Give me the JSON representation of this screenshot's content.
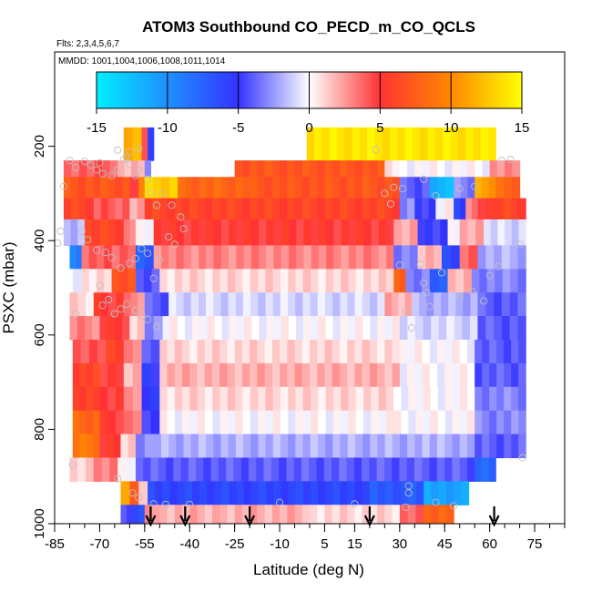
{
  "chart_data": {
    "type": "heatmap",
    "title": "ATOM3 Southbound CO_PECD_m_CO_QCLS",
    "subtitle_flights": "Flts: 2,3,4,5,6,7",
    "subtitle_dates": "MMDD: 1001,1004,1006,1008,1011,1014",
    "xlabel": "Latitude (deg N)",
    "ylabel": "PSXC (mbar)",
    "xlim": [
      -85,
      85
    ],
    "ylim": [
      1000,
      0
    ],
    "x_ticks": [
      -85,
      -70,
      -55,
      -40,
      -25,
      -10,
      5,
      15,
      30,
      45,
      60,
      75
    ],
    "x_tick_labels": [
      "-85",
      "-70",
      "-55",
      "-40",
      "-25",
      "-10",
      "5",
      "15",
      "30",
      "45",
      "60",
      "75"
    ],
    "x_minor_tick_step": 5,
    "y_ticks": [
      200,
      400,
      600,
      800,
      1000
    ],
    "y_tick_labels": [
      "200",
      "400",
      "600",
      "800",
      "1000"
    ],
    "colorbar": {
      "range": [
        -15,
        15
      ],
      "ticks": [
        -15,
        -10,
        -5,
        0,
        5,
        10,
        15
      ],
      "tick_labels": [
        "-15",
        "-10",
        "-5",
        "0",
        "5",
        "10",
        "15"
      ],
      "colors": [
        "#00eeff",
        "#1e90ff",
        "#3333ff",
        "#ffffff",
        "#ff3333",
        "#ff8800",
        "#ffff00"
      ]
    },
    "rows": [
      {
        "p": [
          160,
          230
        ],
        "segs": [
          [
            -62,
            -56,
            12
          ],
          [
            -56,
            -54,
            5
          ],
          [
            -54,
            -52,
            -5
          ],
          [
            -1,
            62,
            14
          ]
        ]
      },
      {
        "p": [
          230,
          265
        ],
        "segs": [
          [
            -82,
            -64,
            4
          ],
          [
            -64,
            -55,
            2
          ],
          [
            -55,
            -53,
            -3
          ],
          [
            -25,
            25,
            7
          ],
          [
            25,
            30,
            1
          ],
          [
            30,
            60,
            0
          ],
          [
            60,
            70,
            3
          ]
        ]
      },
      {
        "p": [
          265,
          310
        ],
        "segs": [
          [
            -82,
            -60,
            7
          ],
          [
            -60,
            -57,
            4
          ],
          [
            -57,
            -55,
            9
          ],
          [
            -55,
            -44,
            13
          ],
          [
            -44,
            -20,
            8
          ],
          [
            -20,
            30,
            7
          ],
          [
            30,
            40,
            -4
          ],
          [
            40,
            48,
            -12
          ],
          [
            48,
            55,
            -3
          ],
          [
            55,
            62,
            11
          ],
          [
            62,
            70,
            8
          ]
        ]
      },
      {
        "p": [
          310,
          355
        ],
        "segs": [
          [
            -82,
            -72,
            6
          ],
          [
            -72,
            -60,
            4
          ],
          [
            -60,
            -55,
            2
          ],
          [
            -55,
            30,
            6
          ],
          [
            30,
            35,
            -3
          ],
          [
            35,
            42,
            -5
          ],
          [
            42,
            48,
            0
          ],
          [
            48,
            52,
            -6
          ],
          [
            52,
            56,
            3
          ],
          [
            56,
            62,
            5
          ],
          [
            62,
            72,
            6
          ]
        ]
      },
      {
        "p": [
          355,
          410
        ],
        "segs": [
          [
            -82,
            -75,
            -2
          ],
          [
            -75,
            -62,
            6
          ],
          [
            -62,
            -58,
            3
          ],
          [
            -58,
            -52,
            0
          ],
          [
            -52,
            28,
            5
          ],
          [
            28,
            36,
            2
          ],
          [
            36,
            46,
            -5
          ],
          [
            46,
            50,
            0
          ],
          [
            50,
            58,
            2
          ],
          [
            58,
            72,
            -1
          ]
        ]
      },
      {
        "p": [
          410,
          460
        ],
        "segs": [
          [
            -80,
            -76,
            -9
          ],
          [
            -76,
            -66,
            4
          ],
          [
            -66,
            -58,
            4
          ],
          [
            -58,
            -52,
            -7
          ],
          [
            -52,
            28,
            3
          ],
          [
            28,
            36,
            -3
          ],
          [
            36,
            44,
            2
          ],
          [
            44,
            50,
            -6
          ],
          [
            50,
            56,
            4
          ],
          [
            56,
            72,
            -2
          ]
        ]
      },
      {
        "p": [
          460,
          510
        ],
        "segs": [
          [
            -82,
            -76,
            0
          ],
          [
            -76,
            -66,
            1
          ],
          [
            -66,
            -58,
            7
          ],
          [
            -58,
            -50,
            -4
          ],
          [
            -50,
            28,
            1
          ],
          [
            28,
            32,
            8
          ],
          [
            32,
            40,
            -3
          ],
          [
            40,
            46,
            -7
          ],
          [
            46,
            54,
            2
          ],
          [
            54,
            72,
            -3
          ]
        ]
      },
      {
        "p": [
          510,
          560
        ],
        "segs": [
          [
            -80,
            -72,
            1
          ],
          [
            -72,
            -62,
            5
          ],
          [
            -62,
            -55,
            3
          ],
          [
            -55,
            -47,
            -4
          ],
          [
            -47,
            25,
            -1
          ],
          [
            25,
            34,
            2
          ],
          [
            34,
            56,
            -2
          ],
          [
            56,
            72,
            -4
          ]
        ]
      },
      {
        "p": [
          560,
          610
        ],
        "segs": [
          [
            -80,
            -70,
            3
          ],
          [
            -70,
            -60,
            5
          ],
          [
            -60,
            -55,
            1
          ],
          [
            -55,
            -49,
            -3
          ],
          [
            -49,
            30,
            0
          ],
          [
            30,
            56,
            -1
          ],
          [
            56,
            72,
            -4
          ]
        ]
      },
      {
        "p": [
          610,
          660
        ],
        "segs": [
          [
            -79,
            -68,
            4
          ],
          [
            -68,
            -62,
            6
          ],
          [
            -62,
            -56,
            3
          ],
          [
            -56,
            -50,
            -4
          ],
          [
            -50,
            30,
            1
          ],
          [
            30,
            55,
            0
          ],
          [
            55,
            72,
            -4
          ]
        ]
      },
      {
        "p": [
          660,
          710
        ],
        "segs": [
          [
            -79,
            -70,
            6
          ],
          [
            -70,
            -62,
            5
          ],
          [
            -62,
            -56,
            2
          ],
          [
            -56,
            -50,
            -5
          ],
          [
            -50,
            30,
            2
          ],
          [
            30,
            55,
            0
          ],
          [
            55,
            72,
            -4
          ]
        ]
      },
      {
        "p": [
          710,
          760
        ],
        "segs": [
          [
            -79,
            -70,
            6
          ],
          [
            -70,
            -62,
            5
          ],
          [
            -62,
            -56,
            3
          ],
          [
            -56,
            -50,
            -5
          ],
          [
            -50,
            28,
            1
          ],
          [
            28,
            55,
            0
          ],
          [
            55,
            72,
            -3
          ]
        ]
      },
      {
        "p": [
          760,
          810
        ],
        "segs": [
          [
            -79,
            -70,
            8
          ],
          [
            -70,
            -62,
            5
          ],
          [
            -62,
            -56,
            3
          ],
          [
            -56,
            -50,
            -5
          ],
          [
            -50,
            28,
            0
          ],
          [
            28,
            55,
            0
          ],
          [
            55,
            72,
            -3
          ]
        ]
      },
      {
        "p": [
          810,
          860
        ],
        "segs": [
          [
            -79,
            -70,
            9
          ],
          [
            -70,
            -63,
            5
          ],
          [
            -63,
            -58,
            1
          ],
          [
            -58,
            -52,
            -3
          ],
          [
            -52,
            40,
            -2
          ],
          [
            40,
            55,
            -2
          ],
          [
            55,
            72,
            -4
          ]
        ]
      },
      {
        "p": [
          860,
          910
        ],
        "segs": [
          [
            -80,
            -72,
            1
          ],
          [
            -72,
            -64,
            3
          ],
          [
            -64,
            -58,
            0
          ],
          [
            -58,
            55,
            -4
          ],
          [
            55,
            62,
            -8
          ]
        ]
      },
      {
        "p": [
          910,
          960
        ],
        "segs": [
          [
            -63,
            -60,
            12
          ],
          [
            -60,
            -57,
            8
          ],
          [
            -57,
            -54,
            2
          ],
          [
            -54,
            20,
            -6
          ],
          [
            20,
            38,
            -7
          ],
          [
            38,
            53,
            -11
          ]
        ]
      },
      {
        "p": [
          960,
          1000
        ],
        "segs": [
          [
            -63,
            -59,
            -4
          ],
          [
            -59,
            -55,
            -6
          ],
          [
            -55,
            -50,
            3
          ],
          [
            -50,
            -30,
            2
          ],
          [
            -30,
            0,
            2
          ],
          [
            0,
            30,
            1
          ],
          [
            30,
            38,
            4
          ],
          [
            38,
            48,
            8
          ]
        ]
      }
    ],
    "markers": [
      {
        "x": -53,
        "dir": "down"
      },
      {
        "x": -41.5,
        "dir": "down"
      },
      {
        "x": -20,
        "dir": "down"
      },
      {
        "x": 20,
        "dir": "down"
      },
      {
        "x": 61.5,
        "dir": "down"
      }
    ],
    "points": [
      [
        -80,
        230
      ],
      [
        -78,
        245
      ],
      [
        -75,
        232
      ],
      [
        -73,
        240
      ],
      [
        -71,
        250
      ],
      [
        -70,
        235
      ],
      [
        -69,
        258
      ],
      [
        -66,
        262
      ],
      [
        -64,
        250
      ],
      [
        -62,
        228
      ],
      [
        -60,
        238
      ],
      [
        -58,
        262
      ],
      [
        -57,
        250
      ],
      [
        -54,
        270
      ],
      [
        -53,
        298
      ],
      [
        -51,
        325
      ],
      [
        -49,
        300
      ],
      [
        -46,
        325
      ],
      [
        -43,
        350
      ],
      [
        -76,
        380
      ],
      [
        -74,
        398
      ],
      [
        -71,
        420
      ],
      [
        -68,
        425
      ],
      [
        -66,
        436
      ],
      [
        -63,
        458
      ],
      [
        -60,
        448
      ],
      [
        -58,
        438
      ],
      [
        -56,
        417
      ],
      [
        -54,
        427
      ],
      [
        -52,
        480
      ],
      [
        -70,
        495
      ],
      [
        -69,
        537
      ],
      [
        -67,
        525
      ],
      [
        -65,
        555
      ],
      [
        -63,
        545
      ],
      [
        -61,
        535
      ],
      [
        -58,
        548
      ],
      [
        -56,
        560
      ],
      [
        -54,
        567
      ],
      [
        -51,
        582
      ],
      [
        -78,
        555
      ],
      [
        -79,
        875
      ],
      [
        -64,
        905
      ],
      [
        -59,
        935
      ],
      [
        -57,
        945
      ],
      [
        -52,
        958
      ],
      [
        -48,
        959
      ],
      [
        -40,
        959
      ],
      [
        -10,
        955
      ],
      [
        15,
        958
      ],
      [
        32,
        965
      ],
      [
        42,
        955
      ],
      [
        48,
        962
      ],
      [
        33,
        920
      ],
      [
        33,
        935
      ],
      [
        58,
        528
      ],
      [
        60,
        474
      ],
      [
        63,
        455
      ],
      [
        64,
        230
      ],
      [
        67,
        228
      ],
      [
        70,
        408
      ],
      [
        71,
        860
      ],
      [
        50,
        520
      ],
      [
        54,
        507
      ],
      [
        37,
        450
      ],
      [
        38,
        490
      ],
      [
        39,
        510
      ],
      [
        44,
        468
      ],
      [
        40,
        540
      ],
      [
        32,
        550
      ],
      [
        34,
        585
      ],
      [
        30,
        452
      ],
      [
        27,
        322
      ],
      [
        22,
        207
      ],
      [
        25,
        300
      ],
      [
        28,
        287
      ],
      [
        31,
        290
      ],
      [
        50,
        290
      ],
      [
        55,
        285
      ],
      [
        38,
        270
      ],
      [
        42,
        305
      ],
      [
        -57,
        205
      ],
      [
        -64,
        208
      ],
      [
        -60,
        212
      ],
      [
        -61,
        223
      ],
      [
        -42,
        375
      ],
      [
        -47,
        392
      ],
      [
        -45,
        408
      ],
      [
        -50,
        440
      ],
      [
        -82,
        285
      ],
      [
        -83,
        380
      ],
      [
        -84,
        405
      ]
    ]
  }
}
